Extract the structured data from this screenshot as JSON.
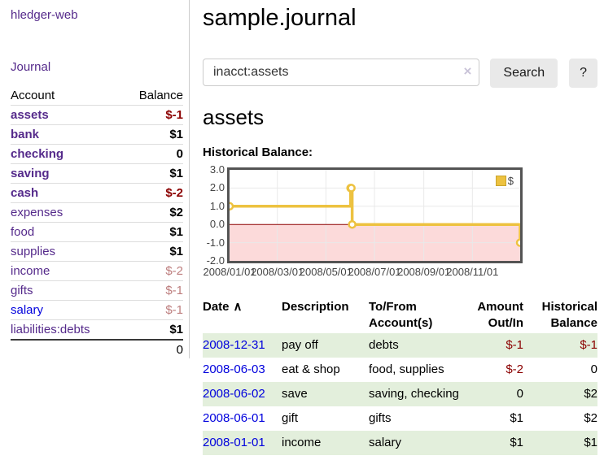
{
  "colors": {
    "link_purple": "#552a8b",
    "link_blue": "#0000dd",
    "negative": "#8b0000",
    "negative_muted": "#bd7d7d",
    "stripe_green": "#e3efdc",
    "line_gold": "#edc240",
    "fill_pink": "#fcdada",
    "zero_line": "#8b0000",
    "chart_border": "#545454",
    "grid": "#e9e9e9",
    "divider": "#cccccc",
    "row_border": "#dddddd",
    "button_bg": "#e9e9e9"
  },
  "sidebar": {
    "app_title": "hledger-web",
    "journal_label": "Journal",
    "accounts": {
      "header_account": "Account",
      "header_balance": "Balance",
      "rows": [
        {
          "account": "assets",
          "balance": "$-1",
          "depth": 1,
          "emph": true,
          "neg": "strong"
        },
        {
          "account": "bank",
          "balance": "$1",
          "depth": 2,
          "emph": true,
          "neg": "none"
        },
        {
          "account": "checking",
          "balance": "0",
          "depth": 3,
          "emph": true,
          "neg": "none"
        },
        {
          "account": "saving",
          "balance": "$1",
          "depth": 3,
          "emph": true,
          "neg": "none"
        },
        {
          "account": "cash",
          "balance": "$-2",
          "depth": 2,
          "emph": true,
          "neg": "strong"
        },
        {
          "account": "expenses",
          "balance": "$2",
          "depth": 1,
          "emph": false,
          "neg": "none"
        },
        {
          "account": "food",
          "balance": "$1",
          "depth": 2,
          "emph": false,
          "neg": "none"
        },
        {
          "account": "supplies",
          "balance": "$1",
          "depth": 2,
          "emph": false,
          "neg": "none"
        },
        {
          "account": "income",
          "balance": "$-2",
          "depth": 1,
          "emph": false,
          "neg": "muted"
        },
        {
          "account": "gifts",
          "balance": "$-1",
          "depth": 2,
          "emph": false,
          "neg": "muted"
        },
        {
          "account": "salary",
          "balance": "$-1",
          "depth": 2,
          "emph": false,
          "neg": "muted",
          "link_color": "blue"
        },
        {
          "account": "liabilities:debts",
          "balance": "$1",
          "depth": 1,
          "emph": false,
          "neg": "none"
        }
      ],
      "total": "0"
    }
  },
  "header": {
    "title": "sample.journal"
  },
  "search": {
    "value": "inacct:assets",
    "clear_icon": "×",
    "button_label": "Search",
    "help_label": "?"
  },
  "account_page": {
    "heading": "assets",
    "chart_label": "Historical Balance:"
  },
  "chart_data": {
    "type": "line",
    "step": true,
    "title": "Historical Balance:",
    "x_start": "2008-01-01",
    "x_end": "2008-12-31",
    "ylim": [
      -2,
      3
    ],
    "grid": true,
    "negative_region_below": 0,
    "legend": {
      "label": "$",
      "position": "top-right"
    },
    "y_ticks": [
      "3.0",
      "2.0",
      "1.0",
      "0.0",
      "-1.0",
      "-2.0"
    ],
    "x_ticks": [
      "2008/01/01",
      "2008/03/01",
      "2008/05/01",
      "2008/07/01",
      "2008/09/01",
      "2008/11/01"
    ],
    "series": [
      {
        "name": "$",
        "points": [
          {
            "date": "2008-01-01",
            "value": 1
          },
          {
            "date": "2008-06-01",
            "value": 2
          },
          {
            "date": "2008-06-02",
            "value": 2
          },
          {
            "date": "2008-06-03",
            "value": 0
          },
          {
            "date": "2008-12-31",
            "value": -1
          }
        ]
      }
    ]
  },
  "register": {
    "headers": {
      "date": "Date",
      "sort_icon": "∧",
      "description": "Description",
      "accounts": "To/From Account(s)",
      "amount": "Amount Out/In",
      "balance": "Historical Balance"
    },
    "rows": [
      {
        "date": "2008-12-31",
        "description": "pay off",
        "accounts": "debts",
        "amount": "$-1",
        "amount_neg": true,
        "balance": "$-1",
        "balance_neg": true
      },
      {
        "date": "2008-06-03",
        "description": "eat & shop",
        "accounts": "food, supplies",
        "amount": "$-2",
        "amount_neg": true,
        "balance": "0",
        "balance_neg": false
      },
      {
        "date": "2008-06-02",
        "description": "save",
        "accounts": "saving, checking",
        "amount": "0",
        "amount_neg": false,
        "balance": "$2",
        "balance_neg": false
      },
      {
        "date": "2008-06-01",
        "description": "gift",
        "accounts": "gifts",
        "amount": "$1",
        "amount_neg": false,
        "balance": "$2",
        "balance_neg": false
      },
      {
        "date": "2008-01-01",
        "description": "income",
        "accounts": "salary",
        "amount": "$1",
        "amount_neg": false,
        "balance": "$1",
        "balance_neg": false
      }
    ]
  }
}
